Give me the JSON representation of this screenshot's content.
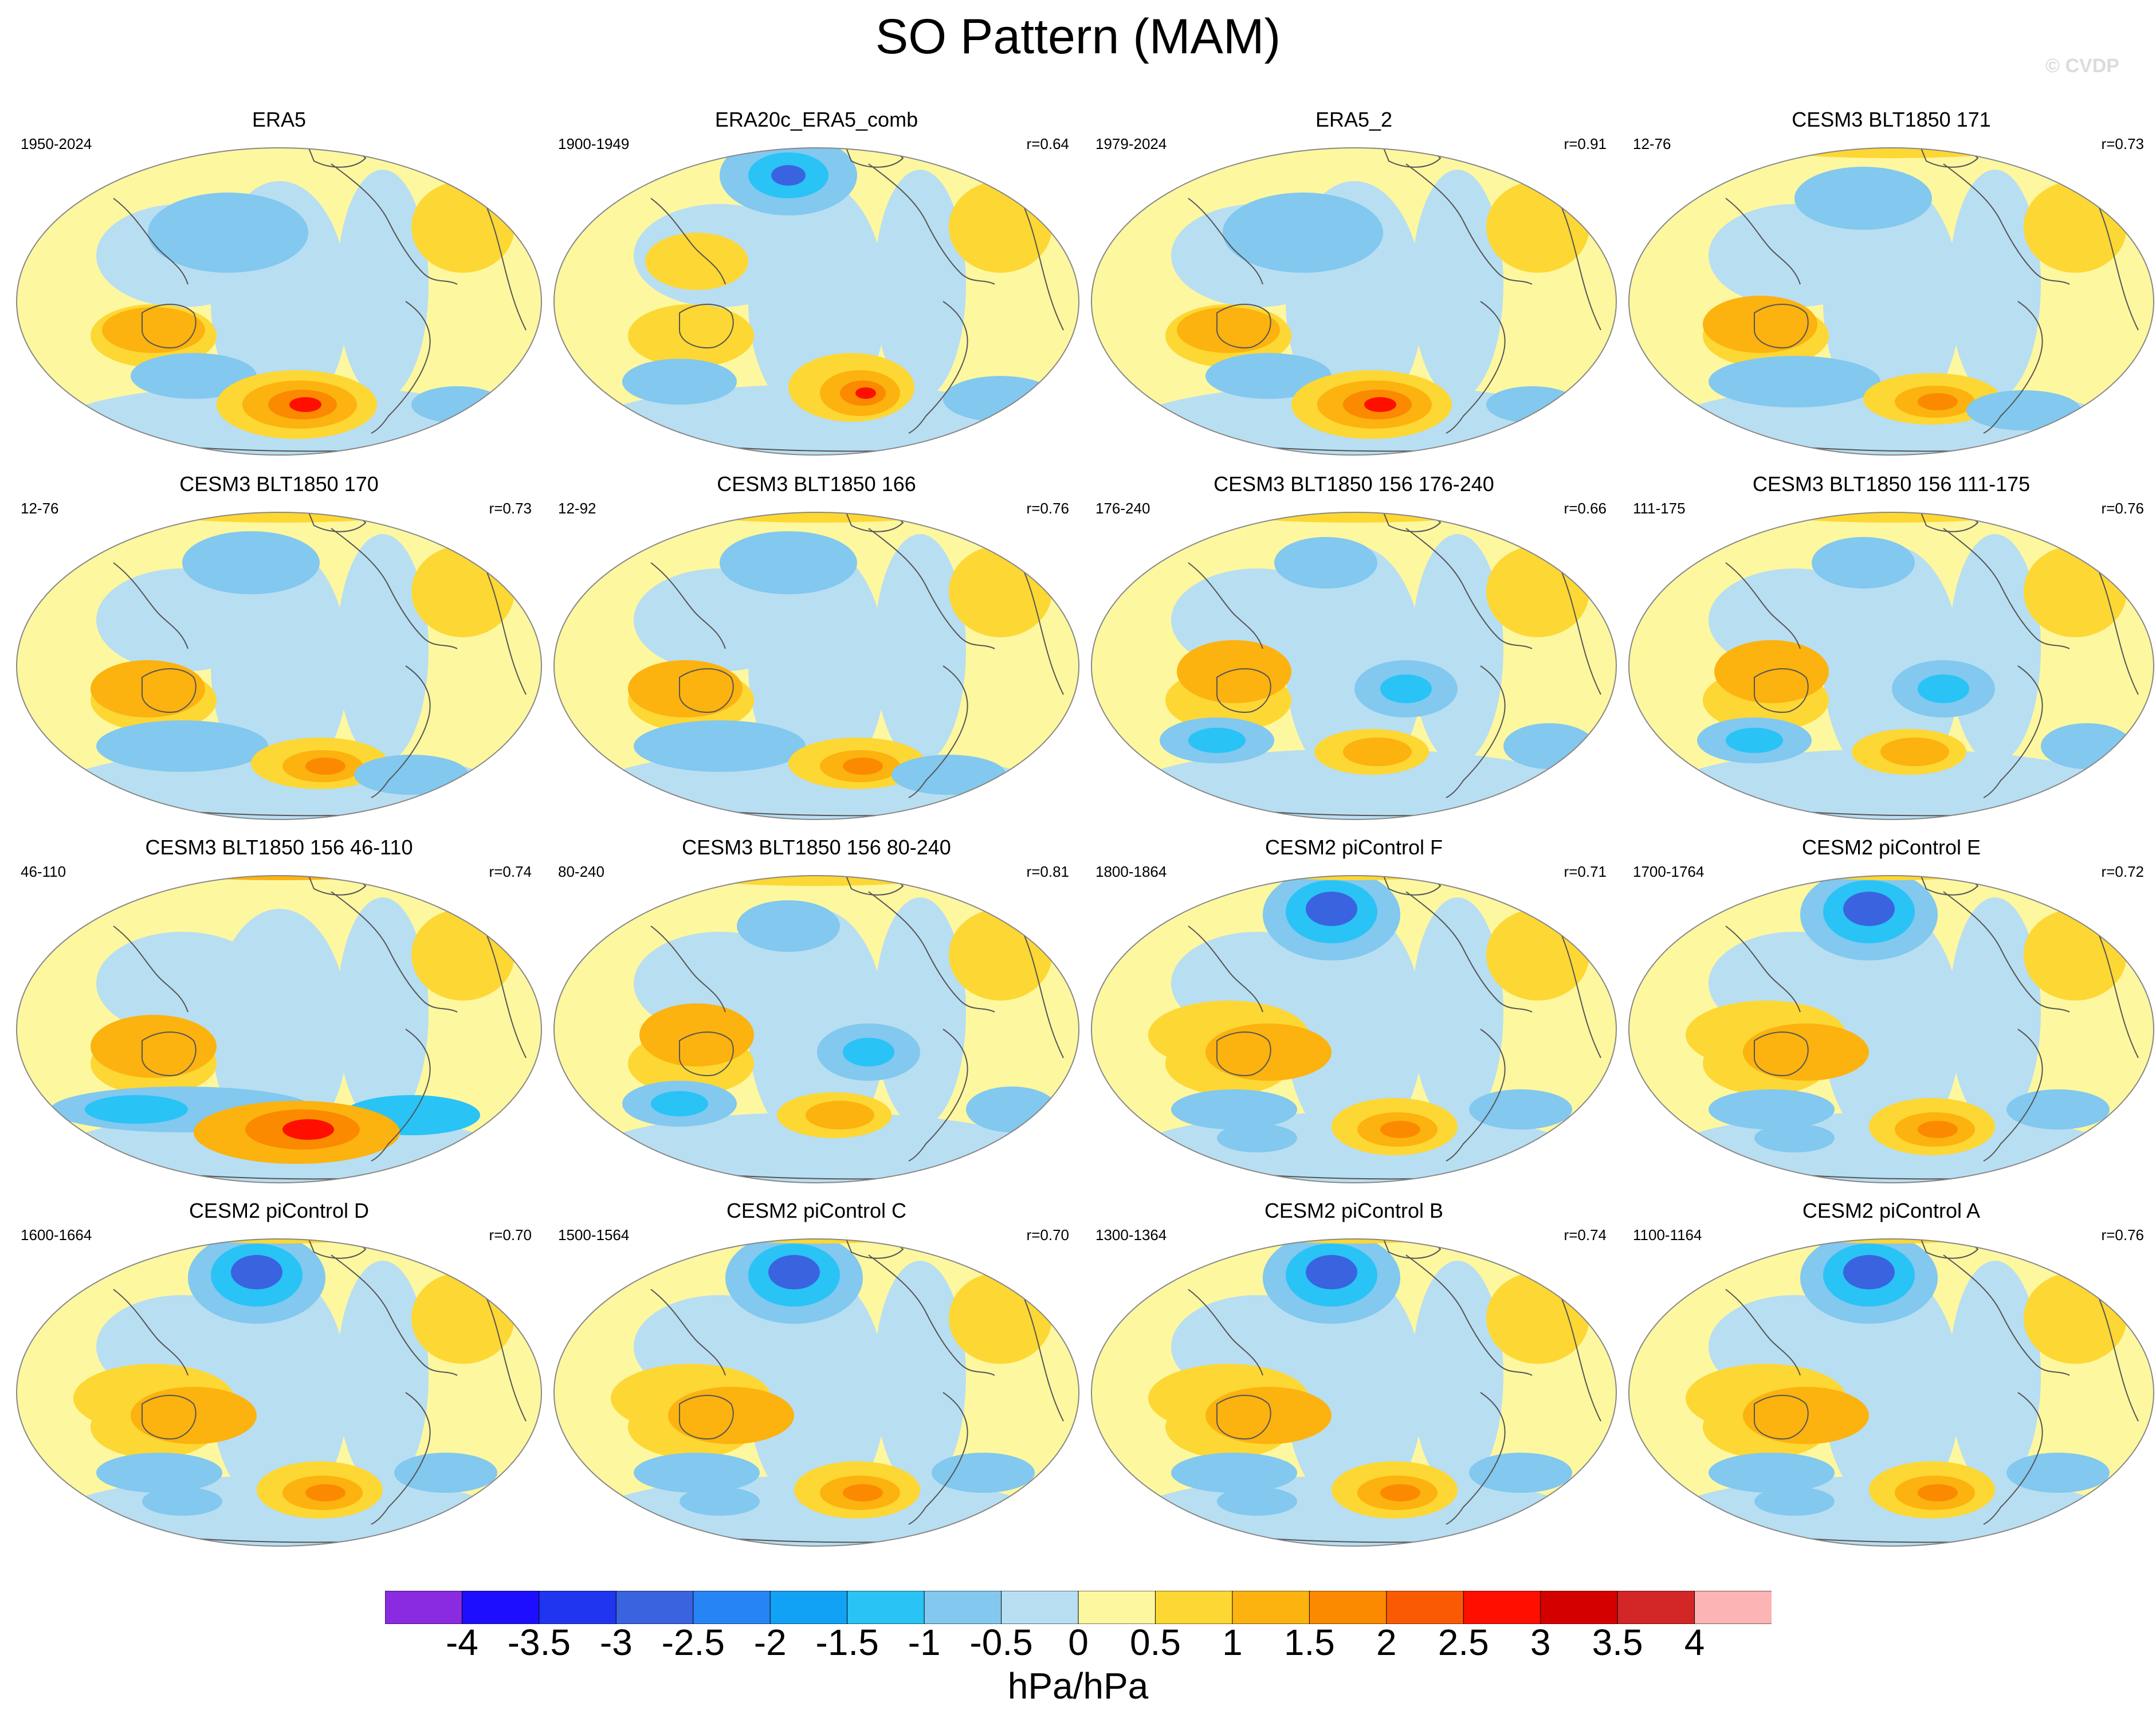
{
  "title": "SO Pattern (MAM)",
  "watermark": "© CVDP",
  "panels": [
    {
      "title": "ERA5",
      "period": "1950-2024",
      "corr": "",
      "style": "era"
    },
    {
      "title": "ERA20c_ERA5_comb",
      "period": "1900-1949",
      "corr": "r=0.64",
      "style": "era20"
    },
    {
      "title": "ERA5_2",
      "period": "1979-2024",
      "corr": "r=0.91",
      "style": "era"
    },
    {
      "title": "CESM3 BLT1850 171",
      "period": "12-76",
      "corr": "r=0.73",
      "style": "arctic"
    },
    {
      "title": "CESM3 BLT1850 170",
      "period": "12-76",
      "corr": "r=0.73",
      "style": "arctic"
    },
    {
      "title": "CESM3 BLT1850 166",
      "period": "12-92",
      "corr": "r=0.76",
      "style": "arctic"
    },
    {
      "title": "CESM3 BLT1850 156 176-240",
      "period": "176-240",
      "corr": "r=0.66",
      "style": "blt"
    },
    {
      "title": "CESM3 BLT1850 156 111-175",
      "period": "111-175",
      "corr": "r=0.76",
      "style": "blt"
    },
    {
      "title": "CESM3 BLT1850 156 46-110",
      "period": "46-110",
      "corr": "r=0.74",
      "style": "strong"
    },
    {
      "title": "CESM3 BLT1850 156 80-240",
      "period": "80-240",
      "corr": "r=0.81",
      "style": "blt"
    },
    {
      "title": "CESM2 piControl F",
      "period": "1800-1864",
      "corr": "r=0.71",
      "style": "cesm2"
    },
    {
      "title": "CESM2 piControl E",
      "period": "1700-1764",
      "corr": "r=0.72",
      "style": "cesm2"
    },
    {
      "title": "CESM2 piControl D",
      "period": "1600-1664",
      "corr": "r=0.70",
      "style": "cesm2"
    },
    {
      "title": "CESM2 piControl C",
      "period": "1500-1564",
      "corr": "r=0.70",
      "style": "cesm2"
    },
    {
      "title": "CESM2 piControl B",
      "period": "1300-1364",
      "corr": "r=0.74",
      "style": "cesm2"
    },
    {
      "title": "CESM2 piControl A",
      "period": "1100-1164",
      "corr": "r=0.76",
      "style": "cesm2"
    }
  ],
  "colorbar": {
    "colors": [
      "#8a2be2",
      "#1e0eff",
      "#2035f0",
      "#3a63e0",
      "#2784f5",
      "#12a2f5",
      "#29c3f6",
      "#82c8ef",
      "#b8def2",
      "#fdf7a0",
      "#fdd733",
      "#fcb20f",
      "#fb8a00",
      "#fb5a05",
      "#fe0f00",
      "#d40000",
      "#d32626",
      "#fcb4b4"
    ],
    "ticks": [
      "-4",
      "-3.5",
      "-3",
      "-2.5",
      "-2",
      "-1.5",
      "-1",
      "-0.5",
      "0",
      "0.5",
      "1",
      "1.5",
      "2",
      "2.5",
      "3",
      "3.5",
      "4"
    ],
    "units": "hPa/hPa"
  },
  "colors": {
    "ocean_neutral": "#fdf7a0",
    "negative_light": "#b8def2",
    "negative_mid": "#82c8ef",
    "negative_strong": "#29c3f6",
    "negative_core": "#3a63e0",
    "positive_light": "#fdd733",
    "positive_mid": "#fcb20f",
    "positive_strong": "#fb8a00",
    "positive_core": "#fe0f00",
    "coast": "#555555"
  }
}
